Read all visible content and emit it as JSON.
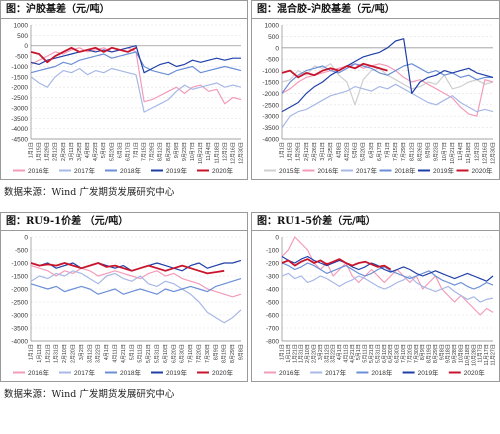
{
  "sources": {
    "top": "数据来源：Wind 广发期货发展研究中心",
    "bottom": "数据来源：Wind 广发期货发展研究中心"
  },
  "chart_data": [
    {
      "type": "line",
      "title": "图：沪胶基差（元/吨）",
      "x": [
        "1月1日",
        "1月15日",
        "1月29日",
        "2月12日",
        "2月26日",
        "3月11日",
        "3月25日",
        "4月8日",
        "4月22日",
        "5月6日",
        "5月20日",
        "6月3日",
        "6月17日",
        "7月1日",
        "7月15日",
        "7月29日",
        "8月12日",
        "8月26日",
        "9月9日",
        "9月23日",
        "10月7日",
        "10月21日",
        "11月4日",
        "11月18日",
        "12月2日",
        "12月16日",
        "12月30日"
      ],
      "ylim": [
        -4500,
        1000
      ],
      "yticks": [
        1000,
        500,
        0,
        -500,
        -1000,
        -1500,
        -2000,
        -2500,
        -3000,
        -3500,
        -4000,
        -4500
      ],
      "legend_position": "bottom",
      "series": [
        {
          "name": "2016年",
          "color": "#f29bb8",
          "values": [
            -900,
            -700,
            -500,
            -300,
            -400,
            -200,
            -100,
            -300,
            -200,
            -100,
            -300,
            -200,
            -100,
            -300,
            -2700,
            -2600,
            -2400,
            -2200,
            -2000,
            -2300,
            -2000,
            -1900,
            -2200,
            -2100,
            -2800,
            -2500,
            -2600
          ]
        },
        {
          "name": "2017年",
          "color": "#a7b8e6",
          "values": [
            -1500,
            -1800,
            -2000,
            -1500,
            -1200,
            -1300,
            -1100,
            -1400,
            -1200,
            -1300,
            -1100,
            -1200,
            -1300,
            -1400,
            -3200,
            -3000,
            -2800,
            -2600,
            -2200,
            -1900,
            -2100,
            -2000,
            -1900,
            -1800,
            -2000,
            -1900,
            -2000
          ]
        },
        {
          "name": "2018年",
          "color": "#6b8fd6",
          "values": [
            -1300,
            -1200,
            -1100,
            -1000,
            -800,
            -900,
            -700,
            -600,
            -500,
            -400,
            -600,
            -500,
            -400,
            -300,
            -1000,
            -1200,
            -1300,
            -1400,
            -1200,
            -1100,
            -1000,
            -1300,
            -1200,
            -1100,
            -1000,
            -1100,
            -1200
          ]
        },
        {
          "name": "2019年",
          "color": "#1f3fa8",
          "values": [
            -800,
            -900,
            -700,
            -600,
            -500,
            -400,
            -300,
            -200,
            -300,
            -200,
            -300,
            -200,
            -100,
            0,
            -1300,
            -1100,
            -900,
            -800,
            -1000,
            -900,
            -700,
            -800,
            -700,
            -600,
            -700,
            -600,
            -600
          ]
        },
        {
          "name": "2020年",
          "color": "#c8142c",
          "values": [
            -300,
            -400,
            -800,
            -500,
            -300,
            -100,
            -300,
            -200,
            -100,
            -300,
            -100,
            -200,
            -300,
            -100,
            null,
            null,
            null,
            null,
            null,
            null,
            null,
            null,
            null,
            null,
            null,
            null,
            null
          ]
        }
      ]
    },
    {
      "type": "line",
      "title": "图：混合胶-沪胶基差（元/吨）",
      "x": [
        "1月1日",
        "1月15日",
        "1月29日",
        "2月12日",
        "2月26日",
        "3月11日",
        "3月25日",
        "4月8日",
        "4月22日",
        "5月6日",
        "5月20日",
        "6月3日",
        "6月17日",
        "7月1日",
        "7月15日",
        "7月29日",
        "8月12日",
        "8月26日",
        "9月9日",
        "9月23日",
        "10月7日",
        "10月21日",
        "11月4日",
        "11月18日",
        "12月2日",
        "12月16日",
        "12月30日"
      ],
      "ylim": [
        -4000,
        1000
      ],
      "yticks": [
        1000,
        500,
        0,
        -500,
        -1000,
        -1500,
        -2000,
        -2500,
        -3000,
        -3500,
        -4000
      ],
      "legend_position": "bottom",
      "series": [
        {
          "name": "2015年",
          "color": "#cfcfcf",
          "values": [
            -1500,
            -1400,
            -1000,
            -1200,
            -800,
            -900,
            -700,
            -1200,
            -1500,
            -2500,
            -1400,
            -1000,
            -900,
            -1200,
            -1400,
            -1600,
            -1800,
            -1700,
            -1500,
            -1600,
            -1200,
            -1800,
            -1700,
            -1500,
            -1400,
            -1600,
            -1500
          ]
        },
        {
          "name": "2016年",
          "color": "#f29bb8",
          "values": [
            -2000,
            -1800,
            -1500,
            -1300,
            -1200,
            -1100,
            -1000,
            -900,
            -800,
            -700,
            -900,
            -800,
            -700,
            -800,
            -1000,
            -1300,
            -1500,
            -1400,
            -1600,
            -1800,
            -2000,
            -2200,
            -2600,
            -2900,
            -3000,
            -1400,
            -1500
          ]
        },
        {
          "name": "2017年",
          "color": "#a7b8e6",
          "values": [
            -3500,
            -3000,
            -2800,
            -2700,
            -2500,
            -2300,
            -2100,
            -2000,
            -1900,
            -1700,
            -1800,
            -1900,
            -1700,
            -1800,
            -1600,
            -1800,
            -2000,
            -2200,
            -2400,
            -2500,
            -2300,
            -2100,
            -2400,
            -2600,
            -2800,
            -2700,
            -2800
          ]
        },
        {
          "name": "2018年",
          "color": "#6b8fd6",
          "values": [
            -2000,
            -1500,
            -1200,
            -1000,
            -900,
            -800,
            -1000,
            -1100,
            -900,
            -700,
            -800,
            -900,
            -1100,
            -1200,
            -1000,
            -800,
            -700,
            -900,
            -1100,
            -1000,
            -1200,
            -1100,
            -1300,
            -1200,
            -1400,
            -1300,
            -1300
          ]
        },
        {
          "name": "2019年",
          "color": "#1f3fa8",
          "values": [
            -2800,
            -2600,
            -2400,
            -2000,
            -1700,
            -1500,
            -1200,
            -1000,
            -800,
            -600,
            -400,
            -300,
            -200,
            0,
            300,
            400,
            -2000,
            -1500,
            -1300,
            -1200,
            -1000,
            -1100,
            -1000,
            -900,
            -1100,
            -1200,
            -1300
          ]
        },
        {
          "name": "2020年",
          "color": "#c8142c",
          "values": [
            -1100,
            -1000,
            -1300,
            -1100,
            -1200,
            -1000,
            -900,
            -1000,
            -800,
            -900,
            -700,
            -800,
            -900,
            -1000,
            null,
            null,
            null,
            null,
            null,
            null,
            null,
            null,
            null,
            null,
            null,
            null,
            null
          ]
        }
      ]
    },
    {
      "type": "line",
      "title": "图：RU9-1价差 （元/吨）",
      "x": [
        "1月1日",
        "1月11日",
        "1月21日",
        "1月31日",
        "2月10日",
        "2月20日",
        "3月2日",
        "3月12日",
        "3月22日",
        "4月1日",
        "4月11日",
        "4月21日",
        "5月1日",
        "5月11日",
        "5月21日",
        "5月31日",
        "6月10日",
        "6月20日",
        "6月30日",
        "7月10日",
        "7月20日",
        "7月30日",
        "8月9日",
        "8月19日",
        "8月29日",
        "9月8日"
      ],
      "ylim": [
        -4000,
        0
      ],
      "yticks": [
        0,
        -500,
        -1000,
        -1500,
        -2000,
        -2500,
        -3000,
        -3500,
        -4000
      ],
      "legend_position": "bottom",
      "series": [
        {
          "name": "2016年",
          "color": "#f29bb8",
          "values": [
            -1100,
            -1200,
            -1300,
            -1500,
            -1300,
            -1400,
            -1200,
            -1300,
            -1500,
            -1400,
            -1300,
            -1400,
            -1500,
            -1600,
            -1400,
            -1300,
            -1500,
            -1400,
            -1600,
            -1700,
            -1800,
            -2000,
            -2100,
            -2200,
            -2300,
            -2200
          ]
        },
        {
          "name": "2017年",
          "color": "#a7b8e6",
          "values": [
            -1700,
            -1500,
            -1600,
            -1400,
            -1500,
            -1300,
            -1400,
            -1600,
            -1800,
            -1500,
            -1400,
            -1600,
            -1700,
            -1500,
            -1800,
            -1900,
            -1700,
            -1800,
            -2000,
            -2200,
            -2500,
            -2900,
            -3100,
            -3300,
            -3100,
            -2800
          ]
        },
        {
          "name": "2018年",
          "color": "#6b8fd6",
          "values": [
            -1800,
            -1900,
            -2000,
            -1900,
            -2100,
            -2000,
            -1900,
            -2000,
            -2200,
            -2100,
            -2000,
            -2200,
            -2100,
            -2000,
            -2100,
            -2200,
            -2000,
            -2100,
            -2000,
            -1900,
            -2000,
            -2100,
            -1900,
            -1800,
            -1700,
            -1600
          ]
        },
        {
          "name": "2019年",
          "color": "#1f3fa8",
          "values": [
            -1000,
            -1100,
            -1000,
            -1200,
            -1100,
            -1000,
            -1200,
            -1100,
            -1000,
            -1100,
            -1200,
            -1100,
            -1300,
            -1200,
            -1100,
            -1000,
            -1100,
            -1200,
            -1300,
            -1100,
            -1000,
            -1200,
            -1100,
            -1000,
            -1000,
            -900
          ]
        },
        {
          "name": "2020年",
          "color": "#c8142c",
          "values": [
            -1000,
            -1100,
            -1050,
            -1100,
            -1000,
            -1100,
            -1200,
            -1100,
            -1000,
            -1150,
            -1100,
            -1200,
            -1300,
            -1200,
            -1100,
            -1200,
            -1300,
            -1200,
            -1100,
            -1200,
            -1300,
            -1400,
            -1350,
            -1300,
            null,
            null
          ]
        }
      ]
    },
    {
      "type": "line",
      "title": "图：RU1-5价差（元/吨）",
      "x": [
        "1月1日",
        "1月11日",
        "1月21日",
        "1月31日",
        "2月10日",
        "2月20日",
        "3月2日",
        "3月12日",
        "3月22日",
        "4月1日",
        "4月11日",
        "4月21日",
        "5月1日",
        "5月11日",
        "5月21日",
        "5月31日",
        "6月10日",
        "6月20日",
        "6月30日",
        "7月10日",
        "7月20日",
        "7月30日",
        "8月9日",
        "8月19日",
        "8月29日",
        "9月8日",
        "9月18日",
        "9月28日",
        "10月8日",
        "10月18日",
        "10月28日",
        "11月7日",
        "11月17日",
        "11月27日"
      ],
      "ylim": [
        -800,
        0
      ],
      "yticks": [
        0,
        -100,
        -200,
        -300,
        -400,
        -500,
        -600,
        -700,
        -800
      ],
      "legend_position": "bottom",
      "series": [
        {
          "name": "2016年",
          "color": "#f29bb8",
          "values": [
            -150,
            -100,
            0,
            -50,
            -100,
            -200,
            -250,
            -200,
            -300,
            -250,
            -200,
            -300,
            -350,
            -300,
            -250,
            -300,
            -350,
            -300,
            -250,
            -300,
            -350,
            -300,
            -400,
            -350,
            -300,
            -400,
            -450,
            -500,
            -450,
            -500,
            -550,
            -600,
            -550,
            -580
          ]
        },
        {
          "name": "2017年",
          "color": "#a7b8e6",
          "values": [
            -300,
            -280,
            -320,
            -300,
            -350,
            -330,
            -300,
            -320,
            -350,
            -380,
            -350,
            -330,
            -300,
            -320,
            -350,
            -380,
            -400,
            -380,
            -350,
            -330,
            -300,
            -350,
            -380,
            -400,
            -420,
            -400,
            -380,
            -420,
            -450,
            -480,
            -460,
            -500,
            -480,
            -470
          ]
        },
        {
          "name": "2018年",
          "color": "#6b8fd6",
          "values": [
            -200,
            -220,
            -250,
            -230,
            -200,
            -220,
            -250,
            -280,
            -260,
            -240,
            -220,
            -250,
            -280,
            -300,
            -280,
            -250,
            -230,
            -260,
            -280,
            -300,
            -320,
            -300,
            -280,
            -260,
            -300,
            -330,
            -350,
            -370,
            -350,
            -380,
            -400,
            -380,
            -350,
            -370
          ]
        },
        {
          "name": "2019年",
          "color": "#1f3fa8",
          "values": [
            -150,
            -180,
            -200,
            -170,
            -150,
            -180,
            -200,
            -220,
            -200,
            -180,
            -200,
            -230,
            -250,
            -230,
            -200,
            -220,
            -250,
            -270,
            -250,
            -230,
            -250,
            -280,
            -300,
            -280,
            -260,
            -280,
            -300,
            -320,
            -300,
            -280,
            -300,
            -320,
            -340,
            -300
          ]
        },
        {
          "name": "2020年",
          "color": "#c8142c",
          "values": [
            -200,
            -180,
            -220,
            -190,
            -170,
            -200,
            -180,
            -210,
            -190,
            -170,
            -200,
            -220,
            -200,
            -190,
            -210,
            -230,
            -220,
            -250,
            null,
            null,
            null,
            null,
            null,
            null,
            null,
            null,
            null,
            null,
            null,
            null,
            null,
            null,
            null,
            null
          ]
        }
      ]
    }
  ]
}
